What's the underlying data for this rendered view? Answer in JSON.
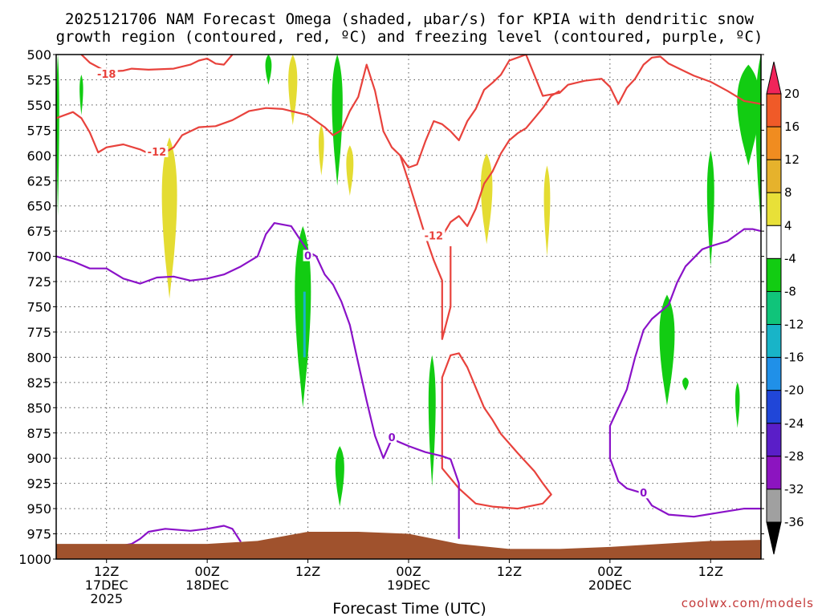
{
  "title_line1": "2025121706 NAM Forecast Omega (shaded, μbar/s) for KPIA with dendritic snow",
  "title_line2": "growth region (contoured, red, ºC) and freezing level (contoured, purple, ºC)",
  "credit": "coolwx.com/models",
  "colors": {
    "dendritic": "#e8423c",
    "freezing": "#8a12c8",
    "ground": "#a0522d",
    "omega_green": "#12cc12",
    "omega_yellow": "#e4dc32"
  },
  "chart_data": {
    "type": "heatmap",
    "xlabel": "Forecast Time (UTC)",
    "ylabel": "",
    "x_hours_range": [
      0,
      84
    ],
    "y_pressure_range": [
      1000,
      500
    ],
    "y_ticks": [
      500,
      525,
      550,
      575,
      600,
      625,
      650,
      675,
      700,
      725,
      750,
      775,
      800,
      825,
      850,
      875,
      900,
      925,
      950,
      975,
      1000
    ],
    "x_ticks": [
      {
        "h": 6,
        "l1": "12Z",
        "l2": "17DEC",
        "l3": "2025"
      },
      {
        "h": 18,
        "l1": "00Z",
        "l2": "18DEC",
        "l3": ""
      },
      {
        "h": 30,
        "l1": "12Z",
        "l2": "",
        "l3": ""
      },
      {
        "h": 42,
        "l1": "00Z",
        "l2": "19DEC",
        "l3": ""
      },
      {
        "h": 54,
        "l1": "12Z",
        "l2": "",
        "l3": ""
      },
      {
        "h": 66,
        "l1": "00Z",
        "l2": "20DEC",
        "l3": ""
      },
      {
        "h": 78,
        "l1": "12Z",
        "l2": "",
        "l3": ""
      }
    ],
    "colorbar": {
      "levels": [
        "20",
        "16",
        "12",
        "8",
        "4",
        "-4",
        "-8",
        "-12",
        "-16",
        "-20",
        "-24",
        "-28",
        "-32",
        "-36"
      ],
      "colors": [
        "#f0245a",
        "#f05a28",
        "#f08c20",
        "#e6b22c",
        "#e8e038",
        "#ffffff",
        "#12cc12",
        "#10c47a",
        "#18b4c8",
        "#2090e8",
        "#2046d8",
        "#5a1ec8",
        "#8c14c0",
        "#a0a0a0",
        "#000000"
      ]
    },
    "ground_surface": [
      [
        0,
        985
      ],
      [
        18,
        985
      ],
      [
        24,
        982
      ],
      [
        30,
        973
      ],
      [
        36,
        973
      ],
      [
        42,
        975
      ],
      [
        48,
        985
      ],
      [
        54,
        990
      ],
      [
        60,
        990
      ],
      [
        66,
        988
      ],
      [
        72,
        985
      ],
      [
        78,
        982
      ],
      [
        84,
        981
      ]
    ],
    "dendritic_contours": [
      {
        "label": "-18",
        "label_at": [
          6,
          520
        ],
        "points": [
          [
            3,
            500
          ],
          [
            4,
            508
          ],
          [
            6,
            517
          ],
          [
            8,
            516
          ],
          [
            9,
            514
          ],
          [
            11,
            515
          ],
          [
            14,
            514
          ],
          [
            16,
            510
          ],
          [
            17,
            506
          ],
          [
            18,
            504
          ],
          [
            19,
            509
          ],
          [
            20,
            510
          ],
          [
            21,
            500
          ]
        ]
      },
      {
        "label": "-12",
        "label_at": [
          12,
          597
        ],
        "points": [
          [
            0,
            563
          ],
          [
            2,
            557
          ],
          [
            3,
            563
          ],
          [
            4,
            577
          ],
          [
            5,
            597
          ],
          [
            6,
            592
          ],
          [
            8,
            589
          ],
          [
            10,
            594
          ],
          [
            11,
            598
          ],
          [
            13,
            597
          ],
          [
            14,
            592
          ],
          [
            15,
            580
          ],
          [
            17,
            572
          ],
          [
            19,
            571
          ],
          [
            21,
            565
          ],
          [
            23,
            556
          ],
          [
            25,
            553
          ],
          [
            27,
            554
          ],
          [
            30,
            560
          ],
          [
            32,
            572
          ],
          [
            33,
            580
          ],
          [
            34,
            575
          ],
          [
            35,
            556
          ],
          [
            36,
            542
          ],
          [
            37,
            510
          ],
          [
            38,
            536
          ],
          [
            39,
            576
          ],
          [
            40,
            592
          ],
          [
            41,
            600
          ],
          [
            42,
            612
          ],
          [
            43,
            609
          ],
          [
            44,
            586
          ],
          [
            45,
            566
          ],
          [
            46,
            569
          ],
          [
            47,
            576
          ],
          [
            48,
            585
          ],
          [
            49,
            566
          ],
          [
            50,
            554
          ],
          [
            51,
            535
          ],
          [
            52,
            528
          ],
          [
            53,
            520
          ],
          [
            54,
            506
          ],
          [
            56,
            500
          ],
          [
            58,
            541
          ],
          [
            60,
            538
          ],
          [
            61,
            530
          ],
          [
            63,
            526
          ],
          [
            65,
            524
          ],
          [
            66,
            532
          ],
          [
            67,
            549
          ],
          [
            68,
            533
          ],
          [
            69,
            524
          ],
          [
            70,
            510
          ],
          [
            71,
            503
          ],
          [
            72,
            502
          ],
          [
            73,
            509
          ],
          [
            75,
            517
          ],
          [
            76,
            521
          ],
          [
            78,
            527
          ],
          [
            80,
            536
          ],
          [
            82,
            546
          ],
          [
            84,
            549
          ]
        ]
      },
      {
        "label": "-12",
        "label_at": [
          45,
          680
        ],
        "points": [
          [
            46,
            680
          ],
          [
            47,
            666
          ],
          [
            48,
            660
          ],
          [
            49,
            670
          ],
          [
            50,
            653
          ],
          [
            51,
            628
          ],
          [
            52,
            616
          ],
          [
            53,
            598
          ],
          [
            54,
            585
          ],
          [
            55,
            578
          ],
          [
            56,
            573
          ],
          [
            57,
            563
          ],
          [
            58,
            553
          ],
          [
            59,
            541
          ],
          [
            60,
            536
          ]
        ]
      },
      {
        "label": "",
        "label_at": null,
        "points": [
          [
            41,
            600
          ],
          [
            42,
            626
          ],
          [
            43,
            653
          ],
          [
            44,
            680
          ],
          [
            45,
            704
          ],
          [
            46,
            724
          ],
          [
            46,
            745
          ],
          [
            46,
            760
          ],
          [
            46,
            782
          ],
          [
            47,
            750
          ],
          [
            47,
            712
          ],
          [
            47,
            690
          ]
        ]
      },
      {
        "label": "",
        "label_at": null,
        "points": [
          [
            46,
            875
          ],
          [
            46,
            820
          ],
          [
            47,
            798
          ],
          [
            48,
            796
          ],
          [
            49,
            810
          ],
          [
            50,
            830
          ],
          [
            51,
            850
          ],
          [
            52,
            862
          ],
          [
            53,
            876
          ],
          [
            55,
            895
          ],
          [
            57,
            913
          ],
          [
            58,
            925
          ],
          [
            59,
            936
          ],
          [
            58,
            945
          ],
          [
            55,
            950
          ],
          [
            52,
            948
          ],
          [
            50,
            945
          ],
          [
            48,
            930
          ],
          [
            46,
            910
          ],
          [
            46,
            875
          ]
        ]
      }
    ],
    "freezing_contours": [
      {
        "label": "0",
        "label_at": [
          30,
          700
        ],
        "points": [
          [
            0,
            700
          ],
          [
            2,
            705
          ],
          [
            4,
            712
          ],
          [
            6,
            712
          ],
          [
            8,
            722
          ],
          [
            10,
            727
          ],
          [
            12,
            721
          ],
          [
            14,
            720
          ],
          [
            16,
            724
          ],
          [
            18,
            722
          ],
          [
            20,
            718
          ],
          [
            22,
            710
          ],
          [
            24,
            700
          ],
          [
            25,
            678
          ],
          [
            26,
            667
          ],
          [
            28,
            670
          ],
          [
            30,
            695
          ],
          [
            31,
            700
          ],
          [
            32,
            718
          ],
          [
            33,
            728
          ],
          [
            34,
            745
          ],
          [
            35,
            768
          ],
          [
            36,
            806
          ],
          [
            37,
            843
          ],
          [
            38,
            878
          ],
          [
            39,
            900
          ],
          [
            40,
            881
          ]
        ]
      },
      {
        "label": "0",
        "label_at": [
          40,
          880
        ],
        "points": [
          [
            40,
            881
          ],
          [
            42,
            888
          ],
          [
            44,
            894
          ],
          [
            46,
            898
          ],
          [
            47,
            901
          ],
          [
            48,
            925
          ],
          [
            48,
            957
          ],
          [
            48,
            980
          ]
        ]
      },
      {
        "label": "0",
        "label_at": [
          6,
          990
        ],
        "points": [
          [
            4,
            987
          ],
          [
            7,
            988
          ],
          [
            9,
            985
          ],
          [
            10,
            980
          ],
          [
            11,
            973
          ],
          [
            13,
            970
          ],
          [
            16,
            972
          ],
          [
            18,
            970
          ],
          [
            20,
            967
          ],
          [
            21,
            970
          ],
          [
            22,
            983
          ]
        ]
      },
      {
        "label": "0",
        "label_at": [
          70,
          935
        ],
        "points": [
          [
            84,
            675
          ],
          [
            83,
            673
          ],
          [
            82,
            673
          ],
          [
            80,
            685
          ],
          [
            78,
            690
          ],
          [
            77,
            693
          ],
          [
            75,
            710
          ],
          [
            74,
            726
          ],
          [
            73,
            748
          ],
          [
            71,
            762
          ],
          [
            70,
            773
          ],
          [
            69,
            800
          ],
          [
            68,
            832
          ],
          [
            66,
            868
          ],
          [
            66,
            900
          ],
          [
            67,
            923
          ],
          [
            68,
            930
          ],
          [
            70,
            935
          ],
          [
            71,
            947
          ],
          [
            73,
            956
          ],
          [
            76,
            958
          ],
          [
            79,
            954
          ],
          [
            82,
            950
          ],
          [
            84,
            950
          ]
        ]
      }
    ],
    "omega_cells": [
      {
        "value": -6,
        "h": 0.2,
        "p_top": 500,
        "p_bot": 660,
        "w": 0.3
      },
      {
        "value": -6,
        "h": 3.0,
        "p_top": 520,
        "p_bot": 560,
        "w": 0.4
      },
      {
        "value": -6,
        "h": 25.3,
        "p_top": 500,
        "p_bot": 530,
        "w": 0.7
      },
      {
        "value": 5,
        "h": 28.2,
        "p_top": 500,
        "p_bot": 570,
        "w": 1.0
      },
      {
        "value": 5,
        "h": 13.5,
        "p_top": 582,
        "p_bot": 742,
        "w": 1.7
      },
      {
        "value": -6,
        "h": 29.4,
        "p_top": 670,
        "p_bot": 850,
        "w": 1.8
      },
      {
        "value": -6,
        "h": 33.5,
        "p_top": 500,
        "p_bot": 630,
        "w": 1.2
      },
      {
        "value": 5,
        "h": 31.6,
        "p_top": 570,
        "p_bot": 620,
        "w": 0.6
      },
      {
        "value": 5,
        "h": 35.0,
        "p_top": 590,
        "p_bot": 640,
        "w": 0.8
      },
      {
        "value": -6,
        "h": 33.8,
        "p_top": 888,
        "p_bot": 948,
        "w": 1.0
      },
      {
        "value": -6,
        "h": 44.8,
        "p_top": 798,
        "p_bot": 928,
        "w": 0.8
      },
      {
        "value": 5,
        "h": 51.3,
        "p_top": 598,
        "p_bot": 688,
        "w": 1.3
      },
      {
        "value": 5,
        "h": 58.5,
        "p_top": 610,
        "p_bot": 700,
        "w": 0.7
      },
      {
        "value": -6,
        "h": 82.5,
        "p_top": 510,
        "p_bot": 610,
        "w": 2.5
      },
      {
        "value": -6,
        "h": 84.0,
        "p_top": 500,
        "p_bot": 670,
        "w": 1.2
      },
      {
        "value": -6,
        "h": 78.0,
        "p_top": 595,
        "p_bot": 710,
        "w": 0.8
      },
      {
        "value": -6,
        "h": 72.8,
        "p_top": 738,
        "p_bot": 848,
        "w": 1.7
      },
      {
        "value": -6,
        "h": 75.0,
        "p_top": 820,
        "p_bot": 833,
        "w": 0.7
      },
      {
        "value": -6,
        "h": 81.2,
        "p_top": 825,
        "p_bot": 870,
        "w": 0.5
      }
    ]
  }
}
